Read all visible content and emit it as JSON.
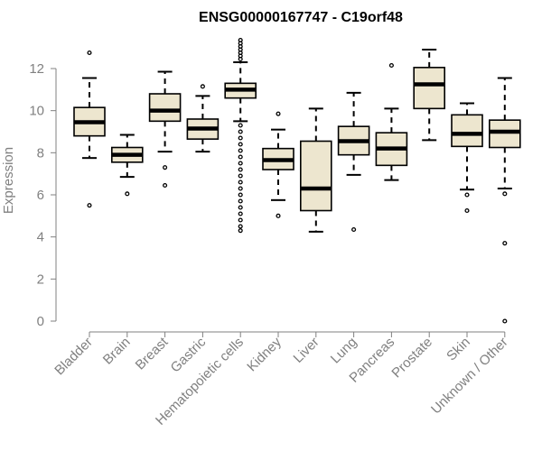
{
  "chart_data": {
    "type": "box",
    "title": "ENSG00000167747 - C19orf48",
    "xlabel": "",
    "ylabel": "Expression",
    "ylim": [
      0,
      13
    ],
    "yticks": [
      0,
      2,
      4,
      6,
      8,
      10,
      12
    ],
    "grid": false,
    "legend": "none",
    "box_fill_color": "#ede6cf",
    "axis_color": "#808080",
    "categories": [
      "Bladder",
      "Brain",
      "Breast",
      "Gastric",
      "Hematopoietic cells",
      "Kidney",
      "Liver",
      "Lung",
      "Pancreas",
      "Prostate",
      "Skin",
      "Unknown / Other"
    ],
    "boxes": [
      {
        "category": "Bladder",
        "whisker_low": 7.75,
        "q1": 8.8,
        "median": 9.45,
        "q3": 10.15,
        "whisker_high": 11.55,
        "outliers": [
          12.75,
          5.5
        ]
      },
      {
        "category": "Brain",
        "whisker_low": 6.85,
        "q1": 7.55,
        "median": 7.9,
        "q3": 8.25,
        "whisker_high": 8.85,
        "outliers": [
          6.05
        ]
      },
      {
        "category": "Breast",
        "whisker_low": 8.05,
        "q1": 9.5,
        "median": 10.0,
        "q3": 10.8,
        "whisker_high": 11.85,
        "outliers": [
          7.3,
          6.45
        ]
      },
      {
        "category": "Gastric",
        "whisker_low": 8.05,
        "q1": 8.65,
        "median": 9.15,
        "q3": 9.6,
        "whisker_high": 10.7,
        "outliers": [
          11.15
        ]
      },
      {
        "category": "Hematopoietic cells",
        "whisker_low": 9.5,
        "q1": 10.6,
        "median": 11.0,
        "q3": 11.3,
        "whisker_high": 12.3,
        "outliers": [
          12.45,
          12.6,
          12.75,
          12.9,
          13.05,
          13.2,
          13.35,
          9.3,
          9.0,
          8.7,
          8.4,
          8.1,
          7.8,
          7.5,
          7.2,
          6.9,
          6.6,
          6.3,
          6.0,
          5.7,
          5.4,
          5.1,
          4.8,
          4.5,
          4.3
        ]
      },
      {
        "category": "Kidney",
        "whisker_low": 5.75,
        "q1": 7.2,
        "median": 7.65,
        "q3": 8.2,
        "whisker_high": 9.1,
        "outliers": [
          9.85,
          5.0
        ]
      },
      {
        "category": "Liver",
        "whisker_low": 4.25,
        "q1": 5.25,
        "median": 6.3,
        "q3": 8.55,
        "whisker_high": 10.1,
        "outliers": []
      },
      {
        "category": "Lung",
        "whisker_low": 6.95,
        "q1": 7.9,
        "median": 8.55,
        "q3": 9.25,
        "whisker_high": 10.85,
        "outliers": [
          4.35
        ]
      },
      {
        "category": "Pancreas",
        "whisker_low": 6.7,
        "q1": 7.4,
        "median": 8.2,
        "q3": 8.95,
        "whisker_high": 10.1,
        "outliers": [
          12.15
        ]
      },
      {
        "category": "Prostate",
        "whisker_low": 8.6,
        "q1": 10.1,
        "median": 11.25,
        "q3": 12.05,
        "whisker_high": 12.9,
        "outliers": []
      },
      {
        "category": "Skin",
        "whisker_low": 6.25,
        "q1": 8.3,
        "median": 8.9,
        "q3": 9.8,
        "whisker_high": 10.35,
        "outliers": [
          6.0,
          5.25
        ]
      },
      {
        "category": "Unknown / Other",
        "whisker_low": 6.3,
        "q1": 8.25,
        "median": 9.0,
        "q3": 9.55,
        "whisker_high": 11.55,
        "outliers": [
          6.05,
          3.7,
          0.0
        ]
      }
    ]
  }
}
